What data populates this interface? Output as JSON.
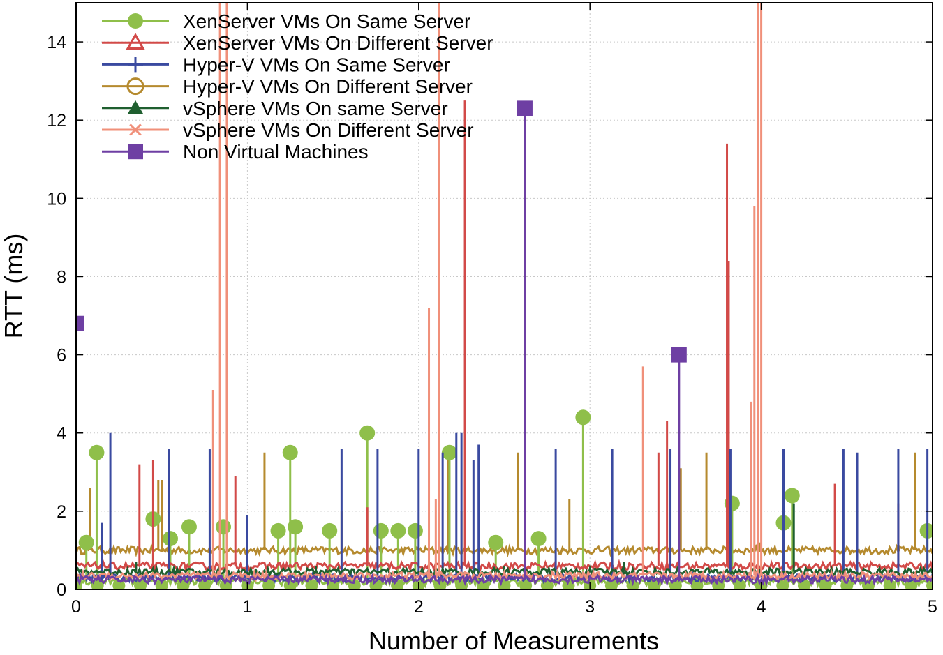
{
  "chart_data": {
    "type": "line",
    "title": "",
    "xlabel": "Number of Measurements",
    "ylabel": "RTT (ms)",
    "xlim": [
      0,
      5
    ],
    "ylim": [
      0,
      15
    ],
    "xticks": [
      0,
      1,
      2,
      3,
      4,
      5
    ],
    "yticks": [
      0,
      2,
      4,
      6,
      8,
      10,
      12,
      14
    ],
    "grid": true,
    "legend_position": "top-left",
    "series": [
      {
        "name": "XenServer VMs On Same Server",
        "color": "#8fbf4a",
        "marker": "circle-filled",
        "baseline": 0.2,
        "spikes": [
          {
            "x": 0.06,
            "y": 1.2
          },
          {
            "x": 0.12,
            "y": 3.5
          },
          {
            "x": 0.45,
            "y": 1.8
          },
          {
            "x": 0.55,
            "y": 1.3
          },
          {
            "x": 0.66,
            "y": 1.6
          },
          {
            "x": 0.86,
            "y": 1.6
          },
          {
            "x": 1.18,
            "y": 1.5
          },
          {
            "x": 1.25,
            "y": 3.5
          },
          {
            "x": 1.28,
            "y": 1.6
          },
          {
            "x": 1.48,
            "y": 1.5
          },
          {
            "x": 1.7,
            "y": 4.0
          },
          {
            "x": 1.78,
            "y": 1.5
          },
          {
            "x": 1.88,
            "y": 1.5
          },
          {
            "x": 1.98,
            "y": 1.5
          },
          {
            "x": 2.18,
            "y": 3.5
          },
          {
            "x": 2.45,
            "y": 1.2
          },
          {
            "x": 2.7,
            "y": 1.3
          },
          {
            "x": 2.96,
            "y": 4.4
          },
          {
            "x": 3.83,
            "y": 2.2
          },
          {
            "x": 4.13,
            "y": 1.7
          },
          {
            "x": 4.18,
            "y": 2.4
          },
          {
            "x": 4.97,
            "y": 1.5
          }
        ]
      },
      {
        "name": "XenServer VMs On Different Server",
        "color": "#d24a48",
        "marker": "triangle-open",
        "baseline": 0.6,
        "spikes": [
          {
            "x": 0.0,
            "y": 1.9
          },
          {
            "x": 0.37,
            "y": 3.2
          },
          {
            "x": 0.45,
            "y": 3.3
          },
          {
            "x": 0.93,
            "y": 2.9
          },
          {
            "x": 1.7,
            "y": 2.1
          },
          {
            "x": 2.27,
            "y": 12.5
          },
          {
            "x": 3.4,
            "y": 3.5
          },
          {
            "x": 3.45,
            "y": 4.3
          },
          {
            "x": 3.8,
            "y": 11.4
          },
          {
            "x": 3.81,
            "y": 8.4
          },
          {
            "x": 4.43,
            "y": 2.7
          },
          {
            "x": 4.8,
            "y": 2.2
          }
        ]
      },
      {
        "name": "Hyper-V VMs On Same Server",
        "color": "#3a4aa0",
        "marker": "plus",
        "baseline": 0.3,
        "spikes": [
          {
            "x": 0.15,
            "y": 1.7
          },
          {
            "x": 0.2,
            "y": 4.0
          },
          {
            "x": 0.54,
            "y": 3.6
          },
          {
            "x": 0.78,
            "y": 3.6
          },
          {
            "x": 1.0,
            "y": 1.9
          },
          {
            "x": 1.55,
            "y": 3.6
          },
          {
            "x": 1.76,
            "y": 3.6
          },
          {
            "x": 2.0,
            "y": 3.6
          },
          {
            "x": 2.14,
            "y": 3.5
          },
          {
            "x": 2.22,
            "y": 4.0
          },
          {
            "x": 2.25,
            "y": 4.0
          },
          {
            "x": 2.32,
            "y": 3.3
          },
          {
            "x": 2.35,
            "y": 3.7
          },
          {
            "x": 2.62,
            "y": 3.6
          },
          {
            "x": 2.8,
            "y": 3.6
          },
          {
            "x": 3.13,
            "y": 3.6
          },
          {
            "x": 3.47,
            "y": 3.6
          },
          {
            "x": 3.82,
            "y": 3.6
          },
          {
            "x": 4.13,
            "y": 3.6
          },
          {
            "x": 4.48,
            "y": 3.6
          },
          {
            "x": 4.56,
            "y": 3.5
          },
          {
            "x": 4.8,
            "y": 3.6
          },
          {
            "x": 4.97,
            "y": 3.6
          }
        ]
      },
      {
        "name": "Hyper-V VMs On Different Server",
        "color": "#b58a2e",
        "marker": "circle-open",
        "baseline": 1.0,
        "spikes": [
          {
            "x": 0.0,
            "y": 1.1
          },
          {
            "x": 0.08,
            "y": 2.6
          },
          {
            "x": 0.48,
            "y": 2.8
          },
          {
            "x": 0.5,
            "y": 2.8
          },
          {
            "x": 1.1,
            "y": 3.5
          },
          {
            "x": 1.55,
            "y": 2.0
          },
          {
            "x": 2.17,
            "y": 3.3
          },
          {
            "x": 2.25,
            "y": 2.0
          },
          {
            "x": 2.58,
            "y": 3.5
          },
          {
            "x": 2.88,
            "y": 2.3
          },
          {
            "x": 3.53,
            "y": 3.1
          },
          {
            "x": 3.68,
            "y": 3.5
          },
          {
            "x": 3.99,
            "y": 1.2
          },
          {
            "x": 4.9,
            "y": 3.5
          }
        ]
      },
      {
        "name": "vSphere VMs On same Server",
        "color": "#1f5f2f",
        "marker": "triangle-filled",
        "baseline": 0.45,
        "spikes": [
          {
            "x": 0.35,
            "y": 0.7
          },
          {
            "x": 1.4,
            "y": 0.6
          },
          {
            "x": 2.5,
            "y": 0.6
          },
          {
            "x": 3.2,
            "y": 0.7
          },
          {
            "x": 4.19,
            "y": 2.2
          }
        ]
      },
      {
        "name": "vSphere VMs On Different Server",
        "color": "#f0907a",
        "marker": "asterisk",
        "baseline": 0.35,
        "spikes": [
          {
            "x": 0.8,
            "y": 5.1
          },
          {
            "x": 0.84,
            "y": 15.0
          },
          {
            "x": 0.88,
            "y": 15.0
          },
          {
            "x": 2.06,
            "y": 7.2
          },
          {
            "x": 2.1,
            "y": 2.3
          },
          {
            "x": 2.12,
            "y": 15.0
          },
          {
            "x": 3.31,
            "y": 5.7
          },
          {
            "x": 3.94,
            "y": 4.8
          },
          {
            "x": 3.96,
            "y": 9.8
          },
          {
            "x": 3.98,
            "y": 15.0
          },
          {
            "x": 4.0,
            "y": 15.0
          }
        ]
      },
      {
        "name": "Non Virtual Machines",
        "color": "#6e3fa3",
        "marker": "square-filled",
        "baseline": 0.25,
        "spikes": [
          {
            "x": 0.0,
            "y": 6.8
          },
          {
            "x": 2.62,
            "y": 12.3
          },
          {
            "x": 3.52,
            "y": 6.0
          }
        ]
      }
    ]
  }
}
